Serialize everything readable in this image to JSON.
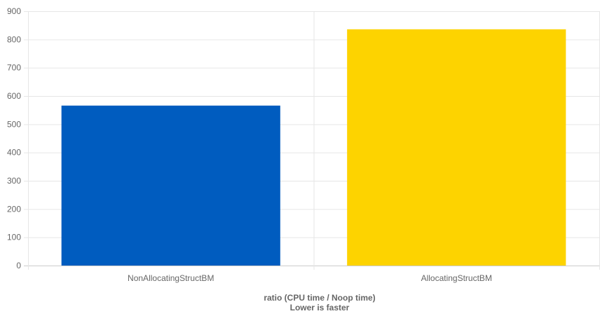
{
  "chart_data": {
    "type": "bar",
    "categories": [
      "NonAllocatingStructBM",
      "AllocatingStructBM"
    ],
    "values": [
      566,
      836
    ],
    "colors": [
      "#005cbf",
      "#fdd300"
    ],
    "ylim": [
      0,
      900
    ],
    "yticks": [
      0,
      100,
      200,
      300,
      400,
      500,
      600,
      700,
      800,
      900
    ],
    "xlabel_lines": [
      "ratio (CPU time / Noop time)",
      "Lower is faster"
    ],
    "grid": true
  }
}
